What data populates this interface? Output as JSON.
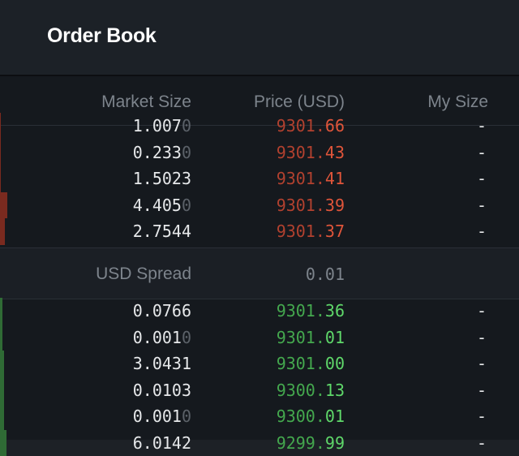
{
  "header": {
    "title": "Order Book"
  },
  "columns": {
    "market_size": "Market Size",
    "price": "Price (USD)",
    "my_size": "My Size"
  },
  "colors": {
    "ask_strong": "#e0553a",
    "ask_weak": "#b2412f",
    "bid_strong": "#5fd86a",
    "bid_weak": "#44a84e",
    "ask_depth": "#7a2a1f",
    "bid_depth": "#2f6b35"
  },
  "asks": [
    {
      "size_main": "1.007",
      "size_dim": "0",
      "price_lo": "9301.",
      "price_hi": "66",
      "my_size": "-",
      "depth": 0.002
    },
    {
      "size_main": "0.233",
      "size_dim": "0",
      "price_lo": "9301.",
      "price_hi": "43",
      "my_size": "-",
      "depth": 0.002
    },
    {
      "size_main": "1.5023",
      "size_dim": "",
      "price_lo": "9301.",
      "price_hi": "41",
      "my_size": "-",
      "depth": 0.002
    },
    {
      "size_main": "4.405",
      "size_dim": "0",
      "price_lo": "9301.",
      "price_hi": "39",
      "my_size": "-",
      "depth": 0.014
    },
    {
      "size_main": "2.7544",
      "size_dim": "",
      "price_lo": "9301.",
      "price_hi": "37",
      "my_size": "-",
      "depth": 0.01
    }
  ],
  "spread": {
    "label": "USD Spread",
    "value": "0.01"
  },
  "bids": [
    {
      "size_main": "0.0766",
      "size_dim": "",
      "price_lo": "9301.",
      "price_hi": "36",
      "my_size": "-",
      "depth": 0.004
    },
    {
      "size_main": "0.001",
      "size_dim": "0",
      "price_lo": "9301.",
      "price_hi": "01",
      "my_size": "-",
      "depth": 0.004
    },
    {
      "size_main": "3.0431",
      "size_dim": "",
      "price_lo": "9301.",
      "price_hi": "00",
      "my_size": "-",
      "depth": 0.008
    },
    {
      "size_main": "0.0103",
      "size_dim": "",
      "price_lo": "9300.",
      "price_hi": "13",
      "my_size": "-",
      "depth": 0.008
    },
    {
      "size_main": "0.001",
      "size_dim": "0",
      "price_lo": "9300.",
      "price_hi": "01",
      "my_size": "-",
      "depth": 0.008
    },
    {
      "size_main": "6.0142",
      "size_dim": "",
      "price_lo": "9299.",
      "price_hi": "99",
      "my_size": "-",
      "depth": 0.012
    }
  ]
}
